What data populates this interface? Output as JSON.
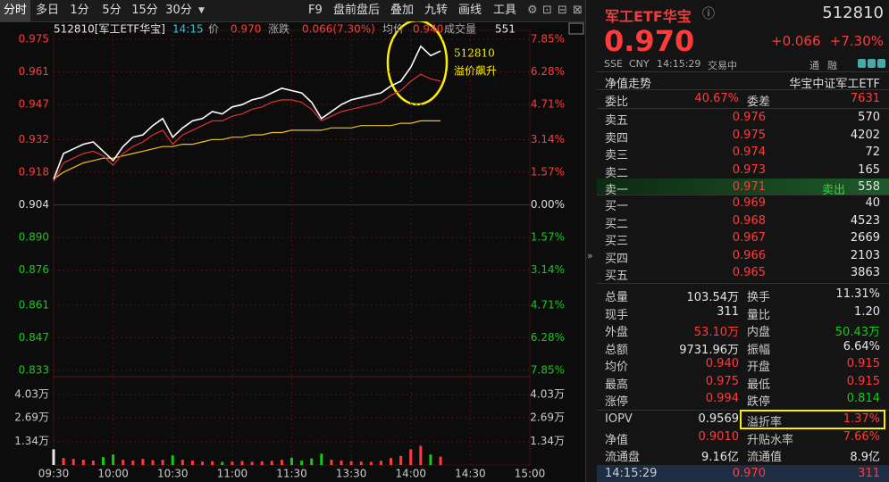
{
  "toolbar": {
    "tabs": [
      "分时",
      "多日",
      "1分",
      "5分",
      "15分",
      "30分"
    ],
    "tools": [
      "F9",
      "盘前盘后",
      "叠加",
      "九转",
      "画线",
      "工具"
    ]
  },
  "chart": {
    "header": {
      "code_name": "512810[军工ETF华宝]",
      "time": "14:15",
      "price_label": "价",
      "price": "0.970",
      "change_label": "涨跌",
      "change": "0.066(7.30%)",
      "avg_label": "均价",
      "avg": "0.940",
      "vol_label": "成交量",
      "vol": "551"
    },
    "annotation": [
      "512810",
      "溢价飙升"
    ],
    "x": [
      0,
      5,
      10,
      15,
      20,
      25,
      30,
      35,
      40,
      45,
      50,
      55,
      60,
      65,
      70,
      75,
      80,
      85,
      90,
      95,
      100,
      105,
      110,
      115,
      120,
      125,
      130,
      135,
      140,
      145,
      150,
      155,
      160,
      165,
      170,
      175,
      180,
      185,
      190,
      195
    ],
    "xlim": [
      0,
      240
    ],
    "xticks": [
      {
        "value": 0,
        "label": "09:30"
      },
      {
        "value": 30,
        "label": "10:00"
      },
      {
        "value": 60,
        "label": "10:30"
      },
      {
        "value": 90,
        "label": "11:00"
      },
      {
        "value": 120,
        "label": "11:30"
      },
      {
        "value": 150,
        "label": "13:30"
      },
      {
        "value": 180,
        "label": "14:00"
      },
      {
        "value": 210,
        "label": "14:30"
      },
      {
        "value": 240,
        "label": "15:00"
      }
    ],
    "ylim": [
      0.833,
      0.975
    ],
    "price_ticks": [
      0.975,
      0.961,
      0.947,
      0.932,
      0.918,
      0.904,
      {
        "value": 0.89,
        "label": "0.890"
      },
      0.876,
      0.861,
      0.847,
      0.833
    ],
    "pct_ticks": [
      {
        "value": 7.85,
        "label": "7.85%"
      },
      {
        "value": 6.28,
        "label": "6.28%"
      },
      {
        "value": 4.71,
        "label": "4.71%"
      },
      {
        "value": 3.14,
        "label": "3.14%"
      },
      {
        "value": 1.57,
        "label": "1.57%"
      },
      {
        "value": 0,
        "label": "0.00%"
      },
      {
        "value": -1.57,
        "label": "1.57%"
      },
      {
        "value": -3.14,
        "label": "3.14%"
      },
      {
        "value": -4.71,
        "label": "4.71%"
      },
      {
        "value": -6.28,
        "label": "6.28%"
      },
      {
        "value": -7.85,
        "label": "7.85%"
      }
    ],
    "price": [
      0.915,
      0.926,
      0.928,
      0.93,
      0.931,
      0.927,
      0.923,
      0.929,
      0.933,
      0.934,
      0.938,
      0.941,
      0.933,
      0.937,
      0.94,
      0.941,
      0.944,
      0.943,
      0.946,
      0.947,
      0.949,
      0.95,
      0.952,
      0.954,
      0.953,
      0.952,
      0.948,
      0.941,
      0.944,
      0.947,
      0.949,
      0.95,
      0.951,
      0.952,
      0.955,
      0.957,
      0.963,
      0.972,
      0.968,
      0.97
    ],
    "nav": [
      0.914,
      0.922,
      0.924,
      0.926,
      0.927,
      0.925,
      0.921,
      0.926,
      0.929,
      0.931,
      0.934,
      0.936,
      0.93,
      0.934,
      0.936,
      0.938,
      0.94,
      0.94,
      0.942,
      0.943,
      0.945,
      0.946,
      0.948,
      0.949,
      0.949,
      0.948,
      0.945,
      0.94,
      0.942,
      0.944,
      0.945,
      0.946,
      0.947,
      0.948,
      0.951,
      0.953,
      0.957,
      0.96,
      0.958,
      0.957
    ],
    "avg": [
      0.915,
      0.918,
      0.92,
      0.922,
      0.923,
      0.924,
      0.924,
      0.925,
      0.926,
      0.927,
      0.928,
      0.929,
      0.929,
      0.93,
      0.93,
      0.931,
      0.932,
      0.932,
      0.933,
      0.933,
      0.934,
      0.934,
      0.935,
      0.935,
      0.936,
      0.936,
      0.936,
      0.936,
      0.937,
      0.937,
      0.937,
      0.938,
      0.938,
      0.938,
      0.938,
      0.939,
      0.939,
      0.94,
      0.94,
      0.94
    ],
    "volume": [
      9000,
      4000,
      3500,
      3000,
      2500,
      4500,
      6000,
      3000,
      2500,
      3500,
      2800,
      3000,
      5500,
      3000,
      2500,
      2000,
      2200,
      1800,
      2000,
      2300,
      1900,
      2100,
      2400,
      3000,
      4200,
      2500,
      3800,
      6500,
      3000,
      2600,
      2200,
      2000,
      1800,
      2400,
      4000,
      5200,
      9000,
      11000,
      6000,
      4800
    ],
    "vol_ylim": [
      0,
      46400
    ],
    "vol_ticks": [
      {
        "value": 40300,
        "label": "4.03万"
      },
      {
        "value": 26900,
        "label": "2.69万"
      },
      {
        "value": 13400,
        "label": "1.34万"
      }
    ]
  },
  "quote": {
    "name": "军工ETF华宝",
    "code": "512810",
    "price": "0.970",
    "change": "+0.066",
    "pct": "+7.30%",
    "exchange": "SSE",
    "currency": "CNY",
    "time": "14:15:29",
    "status": "交易中",
    "flags": [
      "通",
      "融"
    ]
  },
  "nav_section": {
    "label": "净值走势",
    "fund": "华宝中证军工ETF"
  },
  "order_ratio": [
    "委比",
    "40.67%",
    "委差",
    "7631"
  ],
  "asks": [
    [
      "卖五",
      "0.976",
      "570"
    ],
    [
      "卖四",
      "0.975",
      "4202"
    ],
    [
      "卖三",
      "0.974",
      "72"
    ],
    [
      "卖二",
      "0.973",
      "165"
    ],
    [
      "卖一",
      "0.971",
      "558"
    ]
  ],
  "ask_tag": "卖出",
  "bids": [
    [
      "买一",
      "0.969",
      "40"
    ],
    [
      "买二",
      "0.968",
      "4523"
    ],
    [
      "买三",
      "0.967",
      "2669"
    ],
    [
      "买四",
      "0.966",
      "2103"
    ],
    [
      "买五",
      "0.965",
      "3863"
    ]
  ],
  "stats": [
    [
      "总量",
      "103.54万",
      "换手",
      "11.31%"
    ],
    [
      "现手",
      "311",
      "量比",
      "1.20"
    ],
    [
      "外盘",
      "53.10万",
      "内盘",
      "50.43万"
    ],
    [
      "总额",
      "9731.96万",
      "振幅",
      "6.64%"
    ],
    [
      "均价",
      "0.940",
      "开盘",
      "0.915"
    ],
    [
      "最高",
      "0.975",
      "最低",
      "0.915"
    ],
    [
      "涨停",
      "0.994",
      "跌停",
      "0.814"
    ]
  ],
  "etf_stats": [
    [
      "IOPV",
      "0.9569",
      "溢折率",
      "1.37%"
    ],
    [
      "净值",
      "0.9010",
      "升贴水率",
      "7.66%"
    ],
    [
      "流通盘",
      "9.16亿",
      "流通值",
      "8.9亿"
    ]
  ],
  "last_trade": [
    "14:15:29",
    "0.970",
    "311"
  ]
}
